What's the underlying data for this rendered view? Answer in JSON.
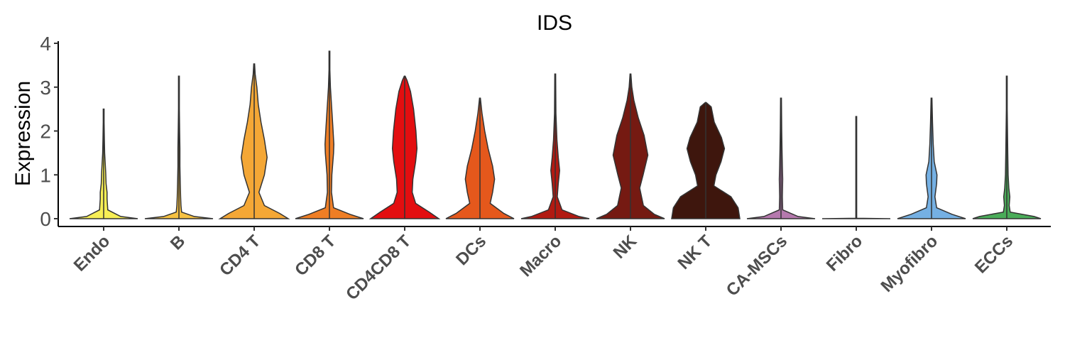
{
  "chart_data": {
    "type": "violin",
    "title": "IDS",
    "xlabel": "",
    "ylabel": "Expression",
    "ylim": [
      -0.2,
      4.0
    ],
    "yticks": [
      0,
      1,
      2,
      3,
      4
    ],
    "grid": false,
    "legend": "none",
    "categories": [
      "Endo",
      "B",
      "CD4 T",
      "CD8 T",
      "CD4CD8 T",
      "DCs",
      "Macro",
      "NK",
      "NK T",
      "CA-MSCs",
      "Fibro",
      "Myofibro",
      "ECCs"
    ],
    "colors": [
      "#f7ee55",
      "#f6c142",
      "#f4a736",
      "#ef7e25",
      "#e30e10",
      "#e5581c",
      "#b11a12",
      "#751a12",
      "#3e160d",
      "#b579ad",
      "#4d4d4d",
      "#75b0e3",
      "#4aac59"
    ],
    "max_values": [
      2.5,
      3.25,
      3.53,
      3.82,
      3.25,
      2.75,
      3.3,
      3.3,
      2.65,
      2.75,
      2.33,
      2.75,
      3.25
    ],
    "density_profiles": [
      [
        [
          0,
          1.0
        ],
        [
          0.05,
          0.5
        ],
        [
          0.2,
          0.12
        ],
        [
          0.45,
          0.1
        ],
        [
          0.6,
          0.1
        ],
        [
          0.8,
          0.07
        ],
        [
          1.05,
          0.06
        ],
        [
          1.2,
          0.05
        ],
        [
          1.5,
          0.03
        ],
        [
          1.8,
          0.02
        ],
        [
          2.2,
          0.01
        ],
        [
          2.5,
          0.0
        ]
      ],
      [
        [
          0,
          1.0
        ],
        [
          0.05,
          0.45
        ],
        [
          0.15,
          0.08
        ],
        [
          0.3,
          0.06
        ],
        [
          0.5,
          0.05
        ],
        [
          0.8,
          0.04
        ],
        [
          1.2,
          0.03
        ],
        [
          1.6,
          0.03
        ],
        [
          2.0,
          0.02
        ],
        [
          2.5,
          0.01
        ],
        [
          3.25,
          0.0
        ]
      ],
      [
        [
          0,
          1.0
        ],
        [
          0.12,
          0.75
        ],
        [
          0.3,
          0.3
        ],
        [
          0.6,
          0.14
        ],
        [
          1.0,
          0.3
        ],
        [
          1.4,
          0.38
        ],
        [
          1.8,
          0.3
        ],
        [
          2.2,
          0.2
        ],
        [
          2.6,
          0.12
        ],
        [
          3.0,
          0.08
        ],
        [
          3.3,
          0.03
        ],
        [
          3.53,
          0.0
        ]
      ],
      [
        [
          0,
          1.0
        ],
        [
          0.1,
          0.6
        ],
        [
          0.25,
          0.12
        ],
        [
          0.6,
          0.06
        ],
        [
          1.0,
          0.07
        ],
        [
          1.5,
          0.12
        ],
        [
          1.7,
          0.13
        ],
        [
          2.1,
          0.1
        ],
        [
          2.6,
          0.06
        ],
        [
          3.0,
          0.03
        ],
        [
          3.4,
          0.01
        ],
        [
          3.82,
          0.0
        ]
      ],
      [
        [
          0,
          1.0
        ],
        [
          0.15,
          0.72
        ],
        [
          0.35,
          0.32
        ],
        [
          0.6,
          0.22
        ],
        [
          0.9,
          0.24
        ],
        [
          1.3,
          0.32
        ],
        [
          1.6,
          0.36
        ],
        [
          2.0,
          0.33
        ],
        [
          2.5,
          0.26
        ],
        [
          2.9,
          0.17
        ],
        [
          3.15,
          0.07
        ],
        [
          3.25,
          0.0
        ]
      ],
      [
        [
          0,
          1.0
        ],
        [
          0.12,
          0.7
        ],
        [
          0.35,
          0.3
        ],
        [
          0.6,
          0.37
        ],
        [
          0.9,
          0.43
        ],
        [
          1.2,
          0.37
        ],
        [
          1.6,
          0.24
        ],
        [
          2.0,
          0.14
        ],
        [
          2.4,
          0.06
        ],
        [
          2.75,
          0.0
        ]
      ],
      [
        [
          0,
          1.0
        ],
        [
          0.05,
          0.7
        ],
        [
          0.2,
          0.2
        ],
        [
          0.5,
          0.06
        ],
        [
          0.8,
          0.09
        ],
        [
          1.1,
          0.13
        ],
        [
          1.4,
          0.09
        ],
        [
          1.8,
          0.05
        ],
        [
          2.4,
          0.02
        ],
        [
          3.3,
          0.0
        ]
      ],
      [
        [
          0,
          1.0
        ],
        [
          0.1,
          0.7
        ],
        [
          0.3,
          0.38
        ],
        [
          0.7,
          0.27
        ],
        [
          1.0,
          0.37
        ],
        [
          1.45,
          0.51
        ],
        [
          1.9,
          0.4
        ],
        [
          2.3,
          0.23
        ],
        [
          2.7,
          0.1
        ],
        [
          3.0,
          0.04
        ],
        [
          3.3,
          0.0
        ]
      ],
      [
        [
          0,
          1.0
        ],
        [
          0.25,
          0.95
        ],
        [
          0.5,
          0.74
        ],
        [
          0.75,
          0.24
        ],
        [
          1.0,
          0.3
        ],
        [
          1.3,
          0.45
        ],
        [
          1.6,
          0.55
        ],
        [
          1.85,
          0.46
        ],
        [
          2.2,
          0.25
        ],
        [
          2.55,
          0.16
        ],
        [
          2.65,
          0.0
        ]
      ],
      [
        [
          0,
          1.0
        ],
        [
          0.05,
          0.5
        ],
        [
          0.2,
          0.05
        ],
        [
          0.5,
          0.04
        ],
        [
          0.9,
          0.05
        ],
        [
          1.2,
          0.04
        ],
        [
          1.6,
          0.03
        ],
        [
          2.0,
          0.02
        ],
        [
          2.75,
          0.0
        ]
      ],
      [
        [
          0,
          1.0
        ],
        [
          0.01,
          0.01
        ],
        [
          0.03,
          0.005
        ],
        [
          2.33,
          0.005
        ]
      ],
      [
        [
          0,
          1.0
        ],
        [
          0.1,
          0.6
        ],
        [
          0.25,
          0.15
        ],
        [
          0.5,
          0.1
        ],
        [
          0.8,
          0.15
        ],
        [
          1.0,
          0.16
        ],
        [
          1.3,
          0.08
        ],
        [
          1.7,
          0.05
        ],
        [
          2.2,
          0.03
        ],
        [
          2.75,
          0.0
        ]
      ],
      [
        [
          0,
          1.0
        ],
        [
          0.05,
          0.8
        ],
        [
          0.15,
          0.1
        ],
        [
          0.3,
          0.07
        ],
        [
          0.5,
          0.09
        ],
        [
          0.7,
          0.06
        ],
        [
          1.0,
          0.04
        ],
        [
          1.5,
          0.03
        ],
        [
          2.0,
          0.02
        ],
        [
          2.5,
          0.01
        ],
        [
          3.25,
          0.0
        ]
      ]
    ]
  }
}
